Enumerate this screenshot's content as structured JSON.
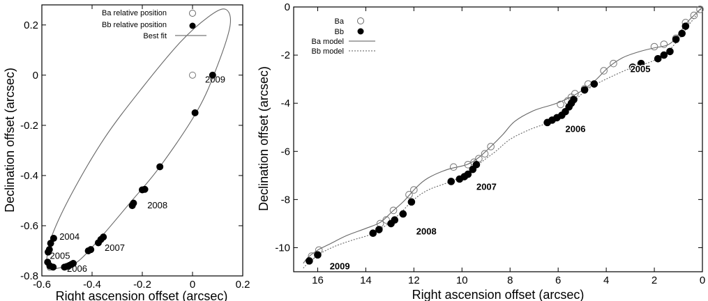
{
  "chart_data": [
    {
      "type": "scatter",
      "xlabel": "Right ascension offset (arcsec)",
      "ylabel": "Declination offset (arcsec)",
      "xlim": [
        -0.6,
        0.2
      ],
      "ylim": [
        -0.8,
        0.28
      ],
      "x_ticks": [
        "-0.6",
        "-0.4",
        "-0.2",
        "0",
        "0.2"
      ],
      "y_ticks": [
        "0.2",
        "0",
        "-0.2",
        "-0.4",
        "-0.6",
        "-0.8"
      ],
      "x_tick_values": [
        -0.6,
        -0.4,
        -0.2,
        0,
        0.2
      ],
      "y_tick_values": [
        0.2,
        0,
        -0.2,
        -0.4,
        -0.6,
        -0.8
      ],
      "legend_position": "top-left",
      "series": [
        {
          "name": "Ba relative position",
          "marker": "open-circle",
          "points": [
            [
              0.0,
              0.0
            ]
          ]
        },
        {
          "name": "Bb relative position",
          "marker": "filled-circle",
          "points": [
            [
              0.08,
              0.0
            ],
            [
              0.01,
              -0.15
            ],
            [
              -0.13,
              -0.365
            ],
            [
              -0.19,
              -0.455
            ],
            [
              -0.2,
              -0.457
            ],
            [
              -0.235,
              -0.51
            ],
            [
              -0.24,
              -0.52
            ],
            [
              -0.355,
              -0.645
            ],
            [
              -0.365,
              -0.655
            ],
            [
              -0.375,
              -0.668
            ],
            [
              -0.405,
              -0.695
            ],
            [
              -0.415,
              -0.7
            ],
            [
              -0.553,
              -0.65
            ],
            [
              -0.565,
              -0.67
            ],
            [
              -0.57,
              -0.695
            ],
            [
              -0.575,
              -0.705
            ],
            [
              -0.577,
              -0.745
            ],
            [
              -0.568,
              -0.76
            ],
            [
              -0.555,
              -0.765
            ],
            [
              -0.51,
              -0.765
            ],
            [
              -0.5,
              -0.762
            ],
            [
              -0.49,
              -0.758
            ],
            [
              -0.482,
              -0.754
            ],
            [
              -0.475,
              -0.75
            ]
          ]
        },
        {
          "name": "Best fit",
          "type": "line",
          "style": "solid",
          "points": [
            [
              -0.582,
              -0.74
            ],
            [
              -0.575,
              -0.775
            ],
            [
              -0.54,
              -0.77
            ],
            [
              -0.46,
              -0.745
            ],
            [
              -0.36,
              -0.64
            ],
            [
              -0.25,
              -0.51
            ],
            [
              -0.13,
              -0.365
            ],
            [
              0.02,
              -0.14
            ],
            [
              0.1,
              0.04
            ],
            [
              0.15,
              0.2
            ],
            [
              0.13,
              0.263
            ],
            [
              0.06,
              0.23
            ],
            [
              -0.05,
              0.13
            ],
            [
              -0.2,
              -0.05
            ],
            [
              -0.35,
              -0.25
            ],
            [
              -0.48,
              -0.47
            ],
            [
              -0.56,
              -0.64
            ],
            [
              -0.582,
              -0.74
            ]
          ]
        }
      ],
      "annotations": [
        {
          "text": "2009",
          "x": 0.05,
          "y": -0.03
        },
        {
          "text": "2008",
          "x": -0.18,
          "y": -0.53
        },
        {
          "text": "2004",
          "x": -0.53,
          "y": -0.655
        },
        {
          "text": "2007",
          "x": -0.35,
          "y": -0.7
        },
        {
          "text": "2005",
          "x": -0.568,
          "y": -0.732
        },
        {
          "text": "2006",
          "x": -0.5,
          "y": -0.783
        }
      ]
    },
    {
      "type": "scatter",
      "xlabel": "Right ascension offset (arcsec)",
      "ylabel": "Declination offset (arcsec)",
      "xlim": [
        17,
        0
      ],
      "ylim": [
        -11,
        0
      ],
      "x_ticks": [
        "16",
        "14",
        "12",
        "10",
        "8",
        "6",
        "4",
        "2",
        "0"
      ],
      "y_ticks": [
        "0",
        "-2",
        "-4",
        "-6",
        "-8",
        "-10"
      ],
      "x_tick_values": [
        16,
        14,
        12,
        10,
        8,
        6,
        4,
        2,
        0
      ],
      "y_tick_values": [
        0,
        -2,
        -4,
        -6,
        -8,
        -10
      ],
      "legend_position": "top-left",
      "series": [
        {
          "name": "Ba",
          "marker": "open-circle",
          "points": [
            [
              0.1,
              -0.1
            ],
            [
              0.35,
              -0.35
            ],
            [
              0.7,
              -0.65
            ],
            [
              1.1,
              -1.3
            ],
            [
              1.6,
              -1.55
            ],
            [
              2.0,
              -1.65
            ],
            [
              3.7,
              -2.35
            ],
            [
              4.1,
              -2.65
            ],
            [
              4.75,
              -3.2
            ],
            [
              4.9,
              -3.4
            ],
            [
              5.3,
              -3.6
            ],
            [
              5.45,
              -3.75
            ],
            [
              5.6,
              -3.9
            ],
            [
              5.9,
              -4.05
            ],
            [
              8.8,
              -5.8
            ],
            [
              9.05,
              -6.1
            ],
            [
              9.3,
              -6.3
            ],
            [
              9.5,
              -6.45
            ],
            [
              9.75,
              -6.55
            ],
            [
              10.35,
              -6.65
            ],
            [
              12.0,
              -7.6
            ],
            [
              12.2,
              -7.8
            ],
            [
              12.85,
              -8.45
            ],
            [
              13.15,
              -8.85
            ],
            [
              13.4,
              -9.0
            ],
            [
              15.95,
              -10.1
            ],
            [
              16.25,
              -10.35
            ]
          ]
        },
        {
          "name": "Bb",
          "marker": "filled-circle",
          "points": [
            [
              0.7,
              -0.8
            ],
            [
              0.85,
              -1.1
            ],
            [
              1.1,
              -1.35
            ],
            [
              1.35,
              -1.85
            ],
            [
              1.6,
              -2.0
            ],
            [
              1.85,
              -2.15
            ],
            [
              2.55,
              -2.35
            ],
            [
              2.9,
              -2.5
            ],
            [
              4.5,
              -3.2
            ],
            [
              4.9,
              -3.45
            ],
            [
              5.35,
              -3.85
            ],
            [
              5.45,
              -4.0
            ],
            [
              5.55,
              -4.15
            ],
            [
              5.7,
              -4.35
            ],
            [
              5.85,
              -4.5
            ],
            [
              6.05,
              -4.6
            ],
            [
              6.25,
              -4.7
            ],
            [
              6.45,
              -4.8
            ],
            [
              9.4,
              -6.55
            ],
            [
              9.55,
              -6.75
            ],
            [
              9.75,
              -6.95
            ],
            [
              9.9,
              -7.05
            ],
            [
              10.1,
              -7.15
            ],
            [
              10.45,
              -7.25
            ],
            [
              12.1,
              -8.1
            ],
            [
              12.45,
              -8.6
            ],
            [
              12.8,
              -8.85
            ],
            [
              12.95,
              -9.0
            ],
            [
              13.45,
              -9.25
            ],
            [
              13.7,
              -9.4
            ],
            [
              16.0,
              -10.3
            ],
            [
              16.35,
              -10.55
            ]
          ]
        },
        {
          "name": "Ba model",
          "type": "line",
          "style": "solid",
          "points": [
            [
              0.0,
              0.0
            ],
            [
              0.3,
              -0.3
            ],
            [
              0.6,
              -0.6
            ],
            [
              0.9,
              -1.0
            ],
            [
              1.2,
              -1.4
            ],
            [
              1.5,
              -1.6
            ],
            [
              2.0,
              -1.7
            ],
            [
              2.6,
              -1.85
            ],
            [
              3.3,
              -2.1
            ],
            [
              3.9,
              -2.5
            ],
            [
              4.4,
              -3.0
            ],
            [
              4.9,
              -3.4
            ],
            [
              5.3,
              -3.65
            ],
            [
              5.7,
              -3.85
            ],
            [
              6.2,
              -4.05
            ],
            [
              7.0,
              -4.3
            ],
            [
              7.8,
              -4.75
            ],
            [
              8.3,
              -5.3
            ],
            [
              8.8,
              -5.8
            ],
            [
              9.3,
              -6.25
            ],
            [
              9.8,
              -6.55
            ],
            [
              10.6,
              -6.75
            ],
            [
              11.4,
              -7.1
            ],
            [
              11.9,
              -7.5
            ],
            [
              12.4,
              -8.05
            ],
            [
              12.9,
              -8.5
            ],
            [
              13.4,
              -8.95
            ],
            [
              14.0,
              -9.2
            ],
            [
              14.8,
              -9.5
            ],
            [
              15.5,
              -9.85
            ],
            [
              16.0,
              -10.1
            ],
            [
              16.4,
              -10.4
            ],
            [
              16.6,
              -10.65
            ]
          ]
        },
        {
          "name": "Bb model",
          "type": "line",
          "style": "dotted",
          "points": [
            [
              0.0,
              0.0
            ],
            [
              0.3,
              -0.4
            ],
            [
              0.6,
              -0.8
            ],
            [
              0.9,
              -1.25
            ],
            [
              1.2,
              -1.6
            ],
            [
              1.6,
              -2.0
            ],
            [
              2.2,
              -2.3
            ],
            [
              3.0,
              -2.55
            ],
            [
              3.8,
              -2.9
            ],
            [
              4.5,
              -3.25
            ],
            [
              5.0,
              -3.6
            ],
            [
              5.4,
              -4.0
            ],
            [
              5.8,
              -4.45
            ],
            [
              6.4,
              -4.8
            ],
            [
              7.2,
              -5.1
            ],
            [
              8.0,
              -5.5
            ],
            [
              8.6,
              -6.0
            ],
            [
              9.2,
              -6.45
            ],
            [
              9.8,
              -6.95
            ],
            [
              10.6,
              -7.3
            ],
            [
              11.4,
              -7.6
            ],
            [
              12.0,
              -8.0
            ],
            [
              12.6,
              -8.6
            ],
            [
              13.2,
              -9.1
            ],
            [
              13.8,
              -9.45
            ],
            [
              14.6,
              -9.7
            ],
            [
              15.3,
              -9.95
            ],
            [
              15.9,
              -10.25
            ],
            [
              16.4,
              -10.65
            ],
            [
              16.6,
              -10.85
            ]
          ]
        }
      ],
      "annotations": [
        {
          "text": "2005",
          "x": 3.0,
          "y": -2.7
        },
        {
          "text": "2006",
          "x": 5.7,
          "y": -5.2
        },
        {
          "text": "2007",
          "x": 9.4,
          "y": -7.6
        },
        {
          "text": "2008",
          "x": 11.9,
          "y": -9.45
        },
        {
          "text": "2009",
          "x": 15.5,
          "y": -10.9
        }
      ]
    }
  ]
}
